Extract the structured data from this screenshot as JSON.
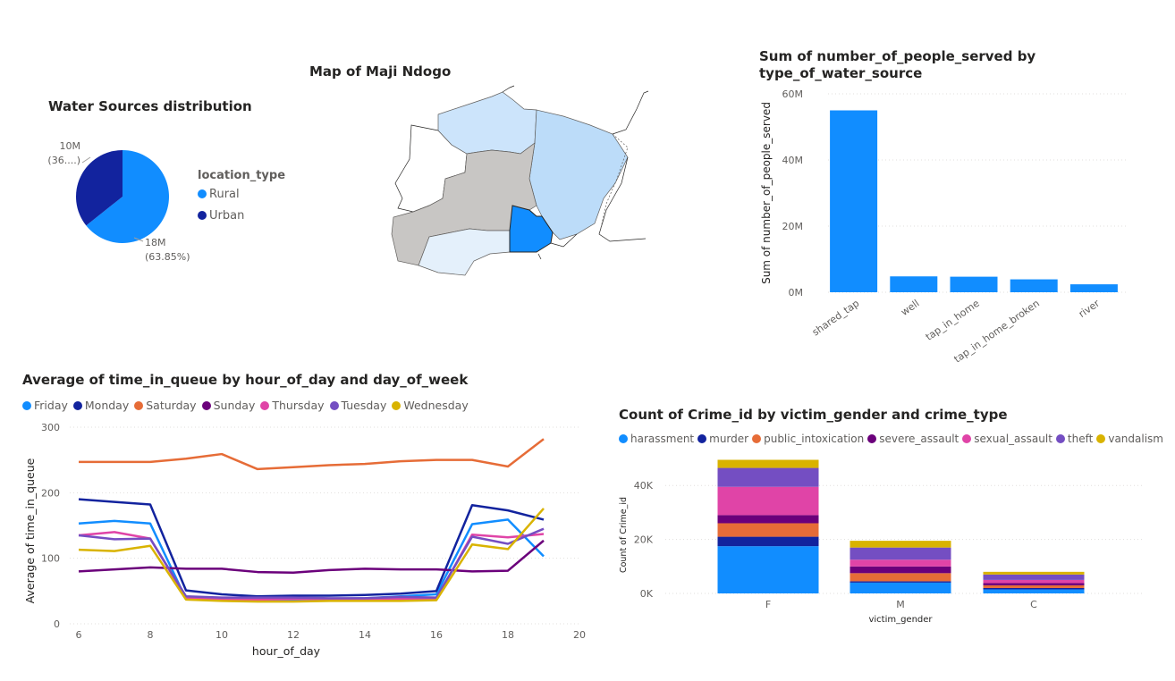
{
  "pie": {
    "title": "Water Sources distribution",
    "legend_title": "location_type",
    "chart_data": {
      "type": "pie",
      "slices": [
        {
          "name": "Rural",
          "value": 18,
          "label_value": "18M",
          "label_pct": "(63.85%)",
          "color": "#118dff"
        },
        {
          "name": "Urban",
          "value": 10,
          "label_value": "10M",
          "label_pct": "(36....)",
          "color": "#12239e"
        }
      ]
    }
  },
  "map": {
    "title": "Map of Maji Ndogo",
    "colors": {
      "light": "#cce4fb",
      "mid": "#bcdcf9",
      "gray": "#c8c6c4",
      "selected": "#118dff",
      "white": "#ffffff",
      "pale": "#e4f0fb"
    }
  },
  "people_served": {
    "title_line1": "Sum of number_of_people_served by",
    "title_line2": "type_of_water_source",
    "chart_data": {
      "type": "bar",
      "categories": [
        "shared_tap",
        "well",
        "tap_in_home",
        "tap_in_home_broken",
        "river"
      ],
      "values": [
        55,
        4.8,
        4.7,
        3.9,
        2.4
      ],
      "ylabel": "Sum of number_of_people_served",
      "ylim": [
        0,
        60
      ],
      "yticks": [
        0,
        20,
        40,
        60
      ],
      "ytick_labels": [
        "0M",
        "20M",
        "40M",
        "60M"
      ],
      "color": "#118dff"
    }
  },
  "queue": {
    "title": "Average of time_in_queue by hour_of_day and day_of_week",
    "chart_data": {
      "type": "line",
      "xlabel": "hour_of_day",
      "ylabel": "Average of time_in_queue",
      "x": [
        6,
        7,
        8,
        9,
        10,
        11,
        12,
        13,
        14,
        15,
        16,
        17,
        18,
        19
      ],
      "xlim": [
        6,
        20
      ],
      "xticks": [
        6,
        8,
        10,
        12,
        14,
        16,
        18,
        20
      ],
      "ylim": [
        0,
        300
      ],
      "yticks": [
        0,
        100,
        200,
        300
      ],
      "series": [
        {
          "name": "Friday",
          "color": "#118dff",
          "values": [
            153,
            157,
            153,
            38,
            37,
            37,
            37,
            38,
            39,
            42,
            45,
            152,
            159,
            103
          ]
        },
        {
          "name": "Monday",
          "color": "#12239e",
          "values": [
            190,
            186,
            182,
            51,
            45,
            42,
            43,
            43,
            44,
            46,
            50,
            181,
            173,
            159
          ]
        },
        {
          "name": "Saturday",
          "color": "#e66c37",
          "values": [
            247,
            247,
            247,
            252,
            259,
            236,
            239,
            242,
            244,
            248,
            250,
            250,
            240,
            282
          ]
        },
        {
          "name": "Sunday",
          "color": "#6b007b",
          "values": [
            80,
            83,
            86,
            84,
            84,
            79,
            78,
            82,
            84,
            83,
            83,
            80,
            81,
            127
          ]
        },
        {
          "name": "Thursday",
          "color": "#e044a7",
          "values": [
            135,
            140,
            130,
            40,
            37,
            37,
            38,
            38,
            38,
            38,
            38,
            136,
            132,
            137
          ]
        },
        {
          "name": "Tuesday",
          "color": "#744ec2",
          "values": [
            135,
            129,
            130,
            42,
            40,
            40,
            40,
            39,
            39,
            41,
            40,
            133,
            122,
            145
          ]
        },
        {
          "name": "Wednesday",
          "color": "#d9b300",
          "values": [
            113,
            111,
            119,
            37,
            35,
            34,
            34,
            35,
            35,
            35,
            36,
            121,
            114,
            176
          ]
        }
      ]
    }
  },
  "crime": {
    "title": "Count of Crime_id by victim_gender and crime_type",
    "chart_data": {
      "type": "bar",
      "stacked": true,
      "categories": [
        "F",
        "M",
        "C"
      ],
      "xlabel": "victim_gender",
      "ylabel": "Count of Crime_id",
      "ylim": [
        0,
        50
      ],
      "yticks": [
        0,
        20,
        40
      ],
      "ytick_labels": [
        "0K",
        "20K",
        "40K"
      ],
      "series": [
        {
          "name": "harassment",
          "color": "#118dff",
          "values": [
            17.5,
            4.0,
            1.5
          ]
        },
        {
          "name": "murder",
          "color": "#12239e",
          "values": [
            3.5,
            0.5,
            0.5
          ]
        },
        {
          "name": "public_intoxication",
          "color": "#e66c37",
          "values": [
            5.0,
            3.0,
            1.0
          ]
        },
        {
          "name": "severe_assault",
          "color": "#6b007b",
          "values": [
            3.0,
            2.5,
            0.8
          ]
        },
        {
          "name": "sexual_assault",
          "color": "#e044a7",
          "values": [
            10.5,
            2.5,
            1.2
          ]
        },
        {
          "name": "theft",
          "color": "#744ec2",
          "values": [
            7.0,
            4.5,
            2.0
          ]
        },
        {
          "name": "vandalism",
          "color": "#d9b300",
          "values": [
            3.0,
            2.5,
            1.0
          ]
        }
      ]
    }
  }
}
